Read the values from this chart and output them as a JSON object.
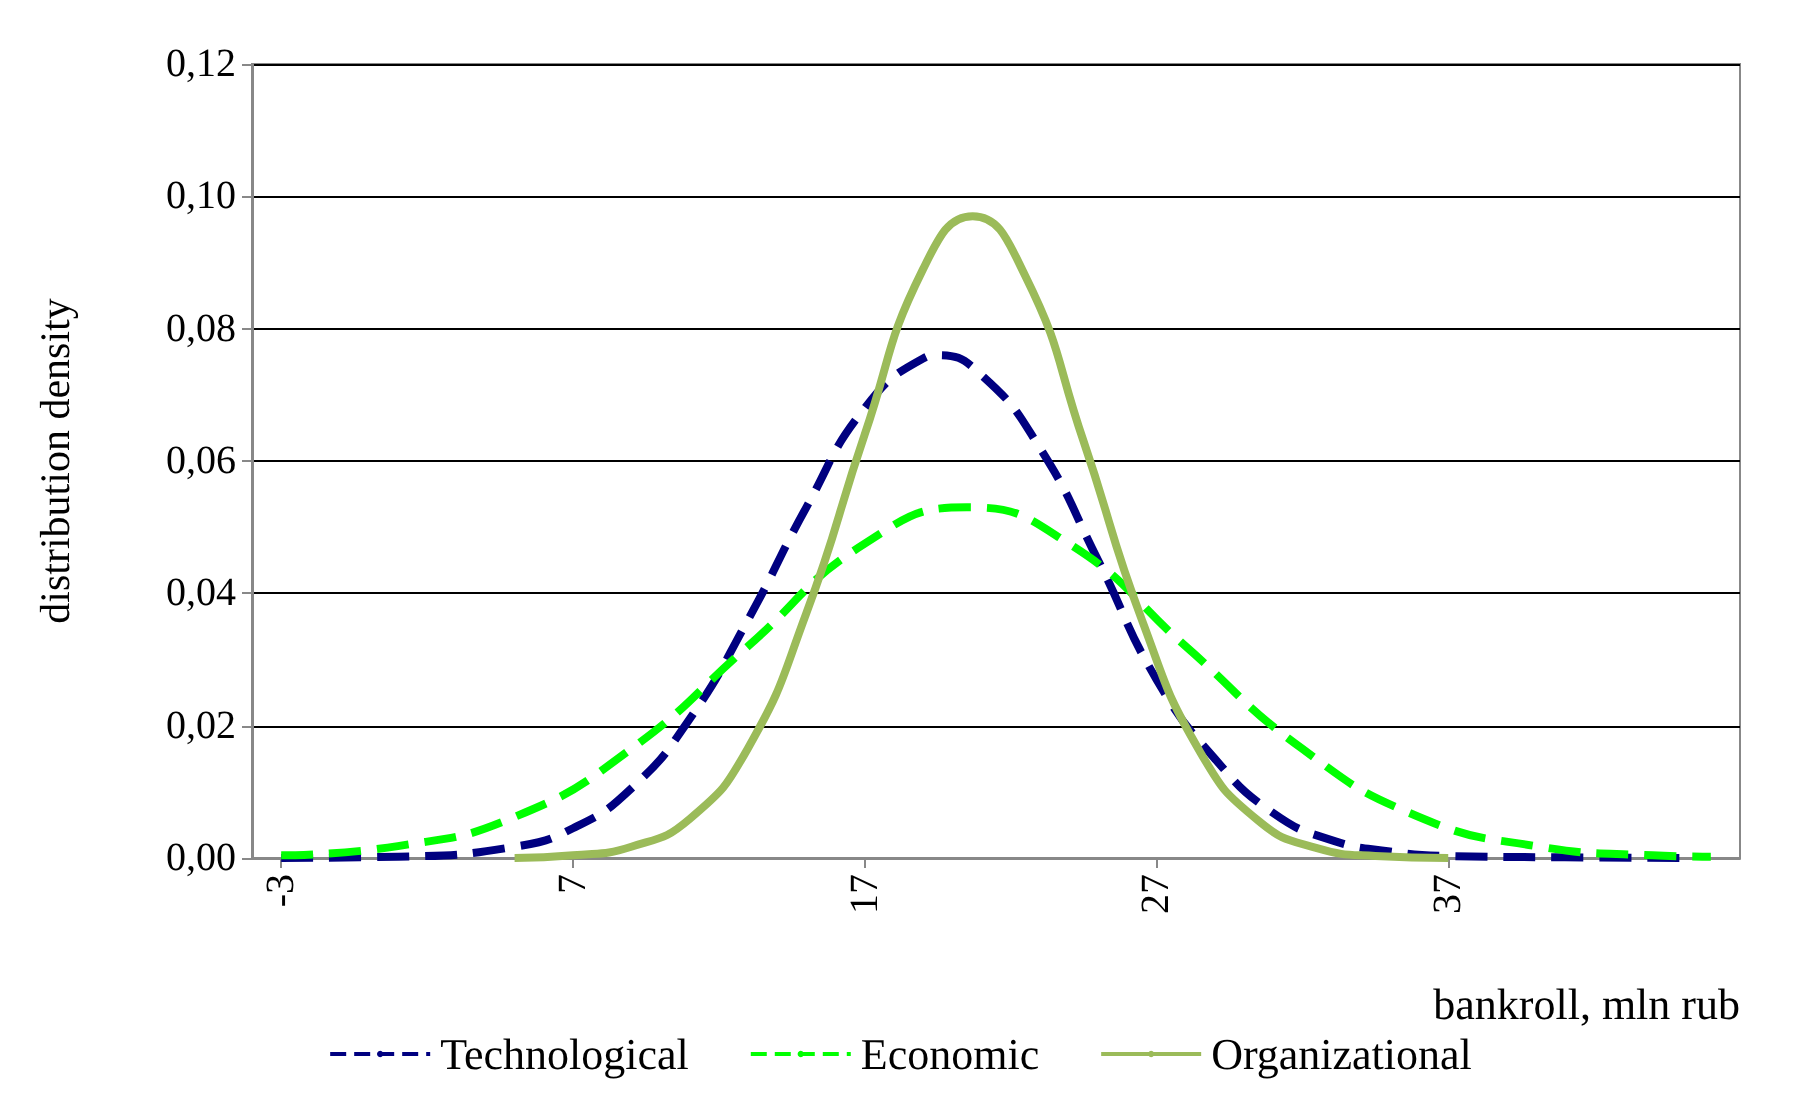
{
  "chart_data": {
    "type": "line",
    "xlabel": "bankroll, mln rub",
    "ylabel": "distribution density",
    "xlim": [
      -4,
      47
    ],
    "xticks": [
      -3,
      7,
      17,
      27,
      37
    ],
    "ylim": [
      0,
      0.12
    ],
    "yticks": [
      {
        "value": 0,
        "label": "0,00"
      },
      {
        "value": 0.02,
        "label": "0,02"
      },
      {
        "value": 0.04,
        "label": "0,04"
      },
      {
        "value": 0.06,
        "label": "0,06"
      },
      {
        "value": 0.08,
        "label": "0,08"
      },
      {
        "value": 0.1,
        "label": "0,10"
      },
      {
        "value": 0.12,
        "label": "0,12"
      }
    ],
    "grid": "y",
    "legend": "bottom",
    "marker": "none",
    "series": [
      {
        "name": "Technological",
        "color": "#000080",
        "line_style": "dashed",
        "x": [
          -3,
          1,
          5,
          7,
          9,
          11,
          13,
          15,
          17,
          19,
          19.5,
          21,
          23,
          25,
          27,
          29,
          31,
          33,
          35,
          37,
          41,
          45
        ],
        "values": [
          0,
          0.0002,
          0.0017,
          0.0045,
          0.0105,
          0.021,
          0.036,
          0.053,
          0.068,
          0.0755,
          0.076,
          0.073,
          0.062,
          0.045,
          0.027,
          0.015,
          0.0068,
          0.0027,
          0.001,
          0.0003,
          0.0001,
          0
        ]
      },
      {
        "name": "Economic",
        "color": "#00ff00",
        "line_style": "dashed",
        "x": [
          -3,
          1,
          5,
          9,
          13,
          17,
          20.5,
          24,
          28,
          32,
          36,
          40,
          44,
          46
        ],
        "values": [
          0.0004,
          0.0018,
          0.0062,
          0.0165,
          0.032,
          0.0475,
          0.053,
          0.0475,
          0.032,
          0.0165,
          0.0062,
          0.0018,
          0.0004,
          0.0002
        ]
      },
      {
        "name": "Organizational",
        "color": "#9bbb59",
        "line_style": "solid",
        "x": [
          5,
          7,
          9,
          11,
          13,
          15,
          17,
          19,
          20.7,
          22.5,
          24.5,
          26.5,
          28.5,
          30.5,
          32.5,
          34.5,
          37
        ],
        "values": [
          0,
          0.0004,
          0.0017,
          0.0059,
          0.0166,
          0.037,
          0.064,
          0.089,
          0.097,
          0.088,
          0.063,
          0.036,
          0.016,
          0.0056,
          0.0015,
          0.0003,
          0
        ]
      }
    ]
  }
}
